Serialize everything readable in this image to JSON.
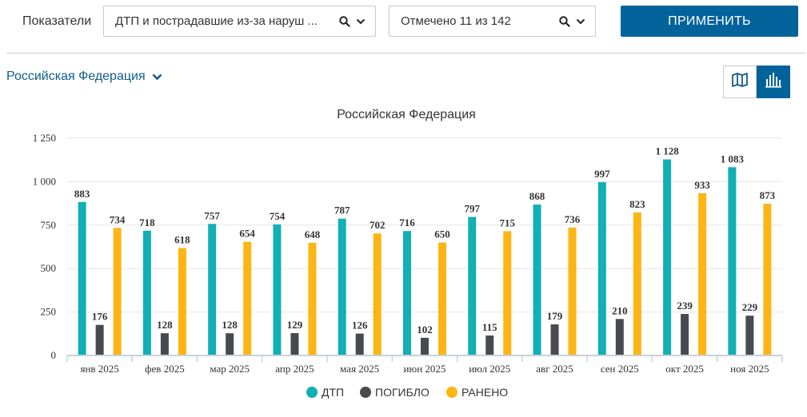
{
  "filters": {
    "label": "Показатели",
    "indicator_value": "ДТП и пострадавшие из-за наруш ...",
    "marked_value": "Отмечено 11 из 142",
    "apply_label": "ПРИМЕНИТЬ"
  },
  "region": {
    "label": "Российская Федерация"
  },
  "colors": {
    "accent": "#02639b",
    "dtp": "#12afb4",
    "killed": "#474b4f",
    "injured": "#fdb515"
  },
  "chart_data": {
    "type": "bar",
    "title": "Российская Федерация",
    "xlabel": "",
    "ylabel": "",
    "ylim": [
      0,
      1250
    ],
    "yticks": [
      0,
      250,
      500,
      750,
      1000,
      1250
    ],
    "ytick_labels": [
      "0",
      "250",
      "500",
      "750",
      "1 000",
      "1 250"
    ],
    "grid": true,
    "legend_position": "bottom",
    "categories": [
      "янв 2025",
      "фев 2025",
      "мар 2025",
      "апр 2025",
      "мая 2025",
      "июн 2025",
      "июл 2025",
      "авг 2025",
      "сен 2025",
      "окт 2025",
      "ноя 2025"
    ],
    "series": [
      {
        "name": "ДТП",
        "values": [
          883,
          718,
          757,
          754,
          787,
          716,
          797,
          868,
          997,
          1128,
          1083
        ],
        "labels": [
          "883",
          "718",
          "757",
          "754",
          "787",
          "716",
          "797",
          "868",
          "997",
          "1 128",
          "1 083"
        ]
      },
      {
        "name": "ПОГИБЛО",
        "values": [
          176,
          128,
          128,
          129,
          126,
          102,
          115,
          179,
          210,
          239,
          229
        ],
        "labels": [
          "176",
          "128",
          "128",
          "129",
          "126",
          "102",
          "115",
          "179",
          "210",
          "239",
          "229"
        ]
      },
      {
        "name": "РАНЕНО",
        "values": [
          734,
          618,
          654,
          648,
          702,
          650,
          715,
          736,
          823,
          933,
          873
        ],
        "labels": [
          "734",
          "618",
          "654",
          "648",
          "702",
          "650",
          "715",
          "736",
          "823",
          "933",
          "873"
        ]
      }
    ]
  }
}
